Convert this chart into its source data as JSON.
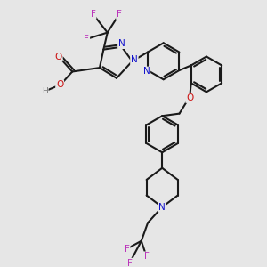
{
  "bg_color": "#e6e6e6",
  "bond_color": "#1a1a1a",
  "bond_width": 1.5,
  "atom_colors": {
    "N": "#1111cc",
    "O": "#cc1111",
    "F": "#bb33bb",
    "H": "#777777",
    "C": "#1a1a1a"
  },
  "font_size": 7.5,
  "fig_size": [
    3.0,
    3.0
  ],
  "dpi": 100,
  "xlim": [
    0,
    10
  ],
  "ylim": [
    0,
    10
  ]
}
